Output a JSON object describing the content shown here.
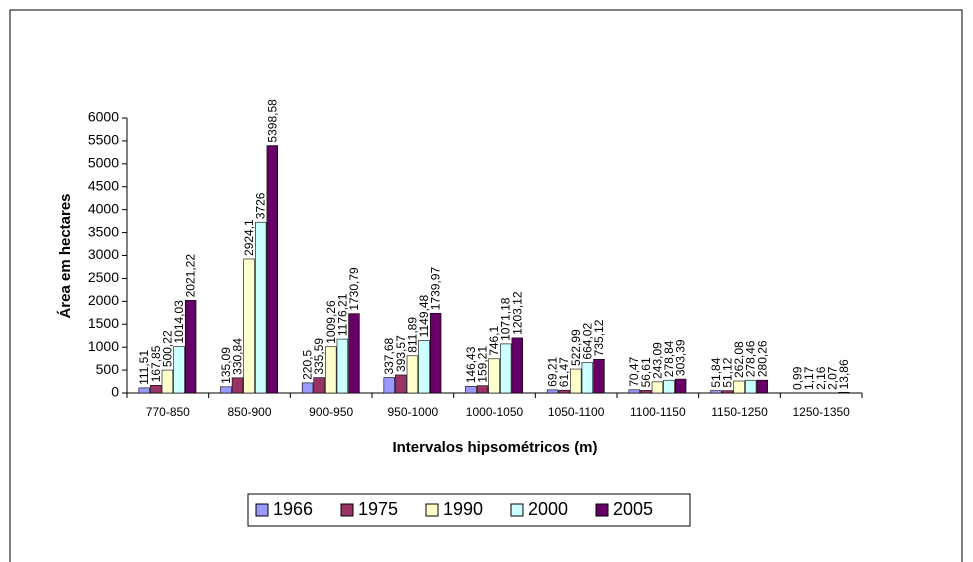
{
  "chart_data": {
    "type": "bar",
    "y_label": "Área em hectares",
    "x_label": "Intervalos hipsométricos (m)",
    "categories": [
      "770-850",
      "850-900",
      "900-950",
      "950-1000",
      "1000-1050",
      "1050-1100",
      "1100-1150",
      "1150-1250",
      "1250-1350"
    ],
    "series": [
      {
        "name": "1966",
        "color": "#9999ff",
        "values": [
          111.51,
          135.09,
          220.5,
          337.68,
          146.43,
          69.21,
          70.47,
          51.84,
          0.99
        ],
        "value_labels": [
          "111,51",
          "135,09",
          "220,5",
          "337,68",
          "146,43",
          "69,21",
          "70,47",
          "51,84",
          "0,99"
        ]
      },
      {
        "name": "1975",
        "color": "#993366",
        "values": [
          167.85,
          330.84,
          335.59,
          393.57,
          159.21,
          61.47,
          56.61,
          51.12,
          1.17
        ],
        "value_labels": [
          "167,85",
          "330,84",
          "335,59",
          "393,57",
          "159,21",
          "61,47",
          "56,61",
          "51,12",
          "1,17"
        ]
      },
      {
        "name": "1990",
        "color": "#ffffcc",
        "values": [
          500.22,
          2924.1,
          1009.26,
          811.89,
          746.1,
          522.99,
          243.09,
          262.08,
          2.16
        ],
        "value_labels": [
          "500,22",
          "2924,1",
          "1009,26",
          "811,89",
          "746,1",
          "522,99",
          "243,09",
          "262,08",
          "2,16"
        ]
      },
      {
        "name": "2000",
        "color": "#ccffff",
        "values": [
          1014.03,
          3726,
          1176.21,
          1149.48,
          1071.18,
          664.02,
          278.84,
          278.46,
          2.07
        ],
        "value_labels": [
          "1014,03",
          "3726",
          "1176,21",
          "1149,48",
          "1071,18",
          "664,02",
          "278,84",
          "278,46",
          "2,07"
        ]
      },
      {
        "name": "2005",
        "color": "#660066",
        "values": [
          2021.22,
          5398.58,
          1730.79,
          1739.97,
          1203.12,
          735.12,
          303.39,
          280.26,
          13.86
        ],
        "value_labels": [
          "2021,22",
          "5398,58",
          "1730,79",
          "1739,97",
          "1203,12",
          "735,12",
          "303,39",
          "280,26",
          "13,86"
        ]
      }
    ],
    "ylim": [
      0,
      6000
    ],
    "yticks": [
      0,
      500,
      1000,
      1500,
      2000,
      2500,
      3000,
      3500,
      4000,
      4500,
      5000,
      5500,
      6000
    ],
    "legend": "bottom"
  }
}
